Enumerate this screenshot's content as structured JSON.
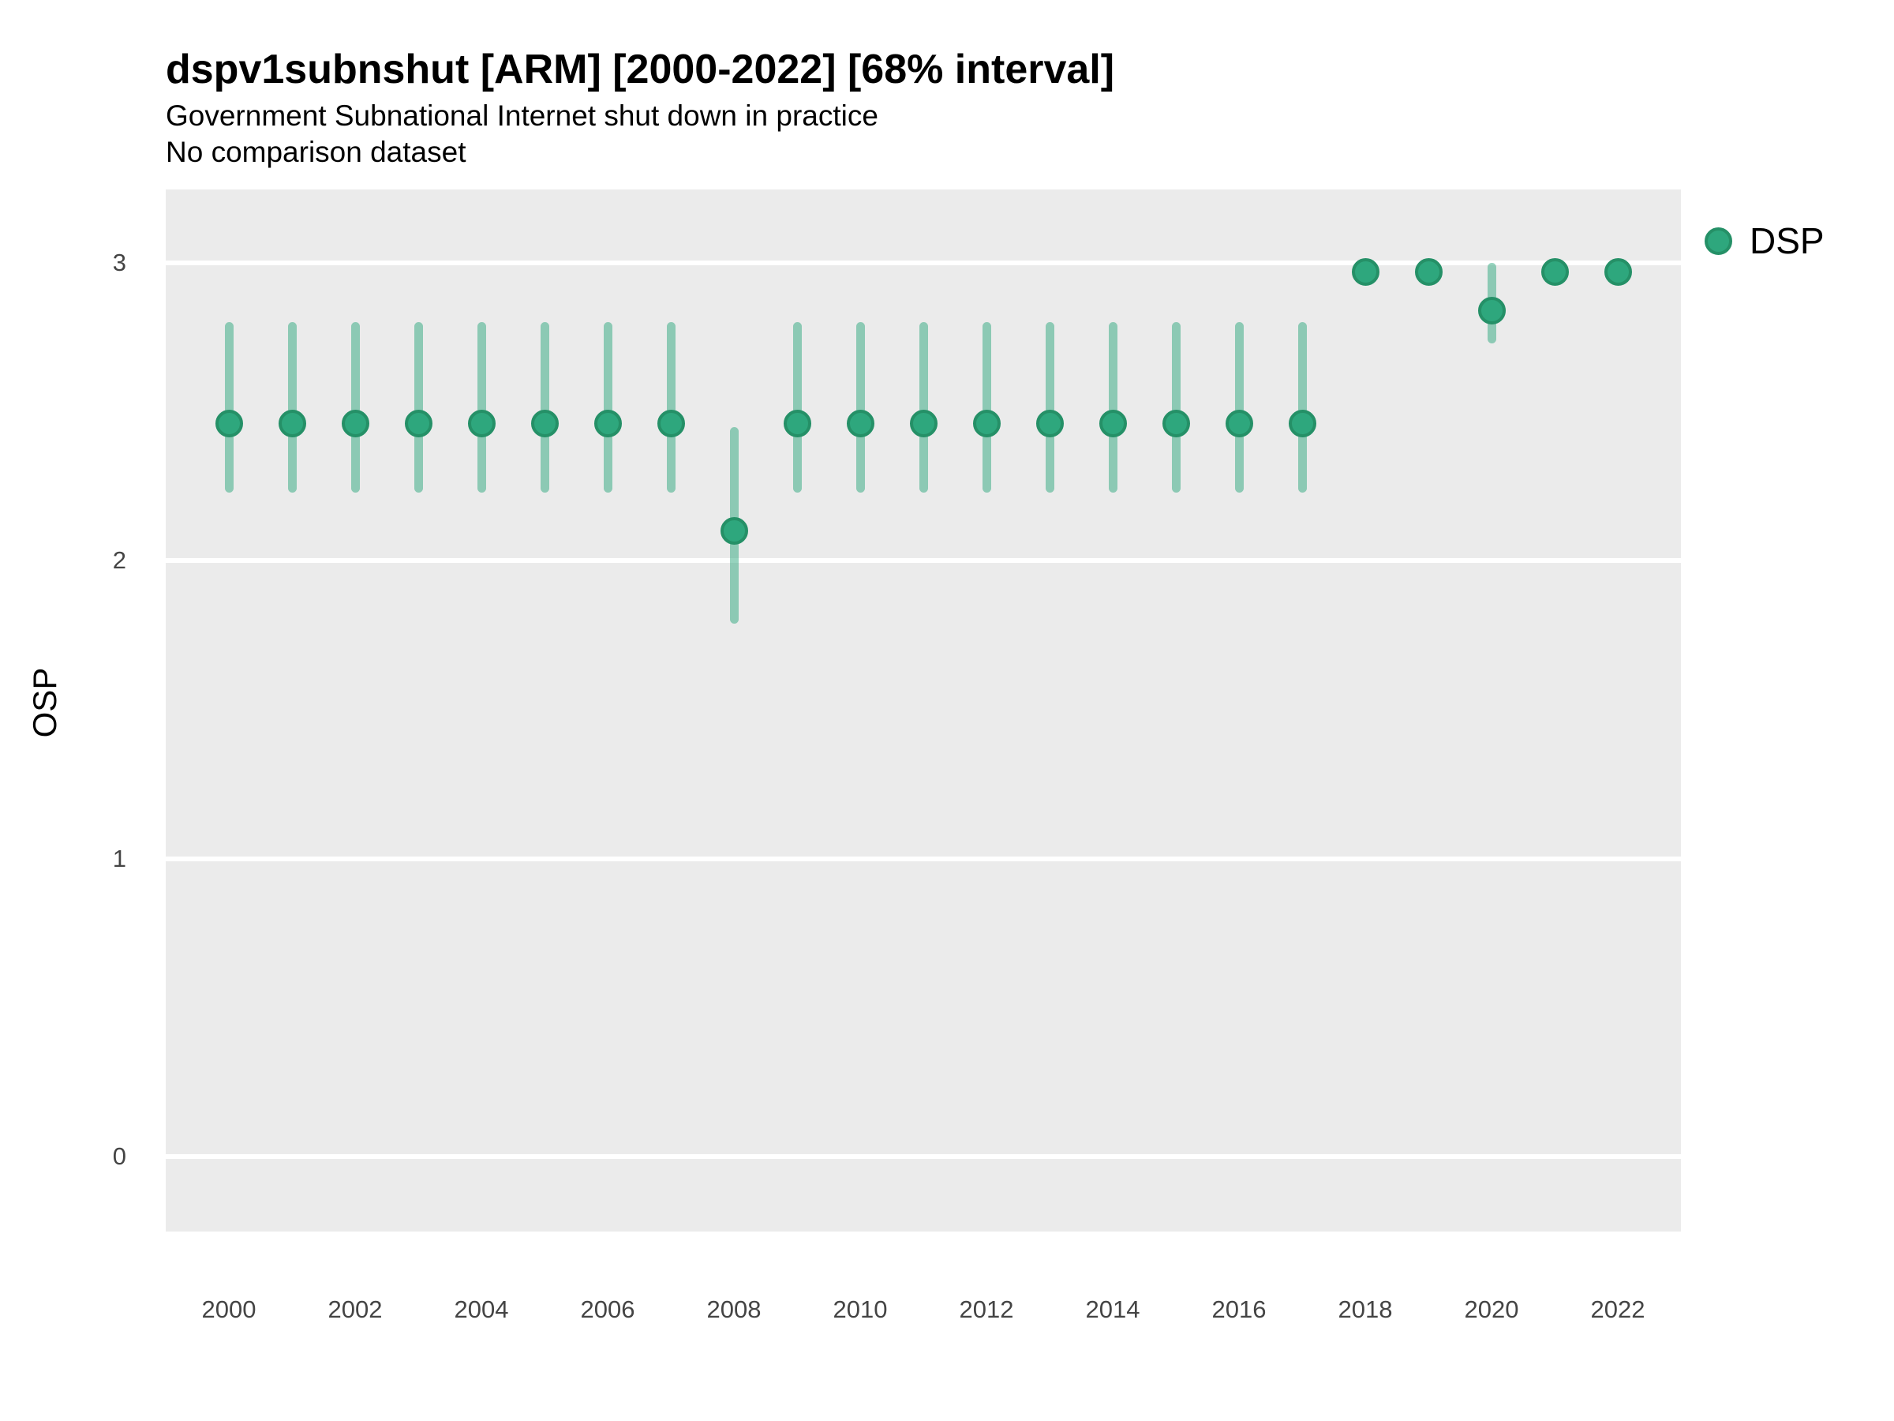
{
  "header": {
    "title": "dspv1subnshut [ARM] [2000-2022] [68% interval]",
    "subtitle": "Government Subnational Internet shut down in practice",
    "subtitle2": "No comparison dataset"
  },
  "legend": {
    "label": "DSP",
    "position": "right-top"
  },
  "colors": {
    "point_fill": "#2EA77D",
    "point_ring": "#259067",
    "interval": "rgba(46,167,125,0.5)",
    "panel_bg": "#EBEBEB",
    "gridline": "#FFFFFF",
    "tick_text": "#444444"
  },
  "chart_data": {
    "type": "scatter",
    "subtype": "pointrange",
    "title": "dspv1subnshut [ARM] [2000-2022] [68% interval]",
    "xlabel": "",
    "ylabel": "OSP",
    "xlim": [
      1999,
      2023
    ],
    "ylim": [
      -0.25,
      3.25
    ],
    "grid": "major-horizontal-only",
    "x_ticks": [
      2000,
      2002,
      2004,
      2006,
      2008,
      2010,
      2012,
      2014,
      2016,
      2018,
      2020,
      2022
    ],
    "y_ticks": [
      0,
      1,
      2,
      3
    ],
    "interval_label": "68% interval",
    "series": [
      {
        "name": "DSP",
        "points": [
          {
            "year": 2000,
            "est": 2.46,
            "lo": 2.23,
            "hi": 2.8
          },
          {
            "year": 2001,
            "est": 2.46,
            "lo": 2.23,
            "hi": 2.8
          },
          {
            "year": 2002,
            "est": 2.46,
            "lo": 2.23,
            "hi": 2.8
          },
          {
            "year": 2003,
            "est": 2.46,
            "lo": 2.23,
            "hi": 2.8
          },
          {
            "year": 2004,
            "est": 2.46,
            "lo": 2.23,
            "hi": 2.8
          },
          {
            "year": 2005,
            "est": 2.46,
            "lo": 2.23,
            "hi": 2.8
          },
          {
            "year": 2006,
            "est": 2.46,
            "lo": 2.23,
            "hi": 2.8
          },
          {
            "year": 2007,
            "est": 2.46,
            "lo": 2.23,
            "hi": 2.8
          },
          {
            "year": 2008,
            "est": 2.1,
            "lo": 1.79,
            "hi": 2.45
          },
          {
            "year": 2009,
            "est": 2.46,
            "lo": 2.23,
            "hi": 2.8
          },
          {
            "year": 2010,
            "est": 2.46,
            "lo": 2.23,
            "hi": 2.8
          },
          {
            "year": 2011,
            "est": 2.46,
            "lo": 2.23,
            "hi": 2.8
          },
          {
            "year": 2012,
            "est": 2.46,
            "lo": 2.23,
            "hi": 2.8
          },
          {
            "year": 2013,
            "est": 2.46,
            "lo": 2.23,
            "hi": 2.8
          },
          {
            "year": 2014,
            "est": 2.46,
            "lo": 2.23,
            "hi": 2.8
          },
          {
            "year": 2015,
            "est": 2.46,
            "lo": 2.23,
            "hi": 2.8
          },
          {
            "year": 2016,
            "est": 2.46,
            "lo": 2.23,
            "hi": 2.8
          },
          {
            "year": 2017,
            "est": 2.46,
            "lo": 2.23,
            "hi": 2.8
          },
          {
            "year": 2018,
            "est": 2.97,
            "lo": 2.97,
            "hi": 2.97
          },
          {
            "year": 2019,
            "est": 2.97,
            "lo": 2.97,
            "hi": 2.97
          },
          {
            "year": 2020,
            "est": 2.84,
            "lo": 2.73,
            "hi": 3.0
          },
          {
            "year": 2021,
            "est": 2.97,
            "lo": 2.97,
            "hi": 2.97
          },
          {
            "year": 2022,
            "est": 2.97,
            "lo": 2.97,
            "hi": 2.97
          }
        ]
      }
    ]
  }
}
